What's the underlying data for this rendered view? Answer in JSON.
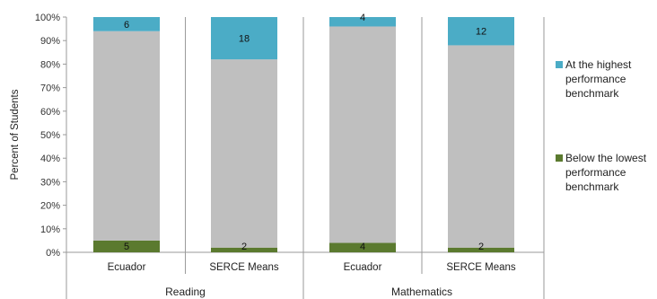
{
  "chart_data": {
    "type": "bar",
    "stacked": true,
    "ylabel": "Percent of Students",
    "ylim": [
      0,
      100
    ],
    "yticks": [
      "0%",
      "10%",
      "20%",
      "30%",
      "40%",
      "50%",
      "60%",
      "70%",
      "80%",
      "90%",
      "100%"
    ],
    "groups": [
      {
        "label": "Reading",
        "categories": [
          "Ecuador",
          "SERCE Means"
        ]
      },
      {
        "label": "Mathematics",
        "categories": [
          "Ecuador",
          "SERCE Means"
        ]
      }
    ],
    "categories": [
      "Ecuador",
      "SERCE Means",
      "Ecuador",
      "SERCE Means"
    ],
    "series": [
      {
        "name": "Below the lowest performance benchmark",
        "color": "#5b7a2f",
        "values": [
          5,
          2,
          4,
          2
        ],
        "labels": [
          "5",
          "2",
          "4",
          "2"
        ]
      },
      {
        "name": "",
        "color": "#bfbfbf",
        "values": [
          89,
          80,
          92,
          86
        ],
        "labels": [
          "",
          "",
          "",
          ""
        ]
      },
      {
        "name": "At the highest performance benchmark",
        "color": "#4bacc6",
        "values": [
          6,
          18,
          4,
          12
        ],
        "labels": [
          "6",
          "18",
          "4",
          "12"
        ]
      }
    ],
    "legend": {
      "position": "right",
      "items": [
        {
          "label": "At the highest performance benchmark",
          "color": "#4bacc6"
        },
        {
          "label": "Below the lowest performance benchmark",
          "color": "#5b7a2f"
        }
      ]
    },
    "grid": false
  }
}
